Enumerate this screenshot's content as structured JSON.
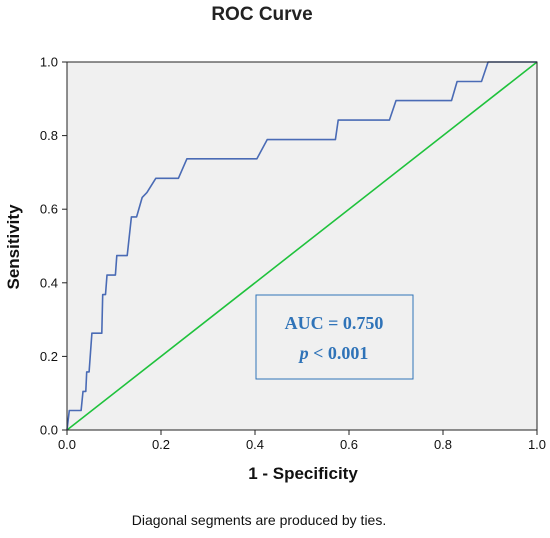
{
  "chart_data": {
    "type": "line",
    "title": "ROC Curve",
    "xlabel": "1 - Specificity",
    "ylabel": "Sensitivity",
    "xlim": [
      0.0,
      1.0
    ],
    "ylim": [
      0.0,
      1.0
    ],
    "x_ticks": [
      "0.0",
      "0.2",
      "0.4",
      "0.6",
      "0.8",
      "1.0"
    ],
    "y_ticks": [
      "0.0",
      "0.2",
      "0.4",
      "0.6",
      "0.8",
      "1.0"
    ],
    "grid": false,
    "series": [
      {
        "color": "#4a6bb5",
        "points": [
          [
            0.0,
            0.0
          ],
          [
            0.005,
            0.053
          ],
          [
            0.03,
            0.053
          ],
          [
            0.034,
            0.105
          ],
          [
            0.04,
            0.105
          ],
          [
            0.042,
            0.158
          ],
          [
            0.047,
            0.158
          ],
          [
            0.05,
            0.211
          ],
          [
            0.053,
            0.263
          ],
          [
            0.074,
            0.263
          ],
          [
            0.076,
            0.368
          ],
          [
            0.082,
            0.368
          ],
          [
            0.085,
            0.421
          ],
          [
            0.103,
            0.421
          ],
          [
            0.106,
            0.474
          ],
          [
            0.128,
            0.474
          ],
          [
            0.137,
            0.579
          ],
          [
            0.148,
            0.579
          ],
          [
            0.16,
            0.632
          ],
          [
            0.17,
            0.645
          ],
          [
            0.189,
            0.684
          ],
          [
            0.237,
            0.684
          ],
          [
            0.255,
            0.737
          ],
          [
            0.404,
            0.737
          ],
          [
            0.426,
            0.789
          ],
          [
            0.571,
            0.789
          ],
          [
            0.577,
            0.842
          ],
          [
            0.686,
            0.842
          ],
          [
            0.7,
            0.895
          ],
          [
            0.818,
            0.895
          ],
          [
            0.83,
            0.947
          ],
          [
            0.882,
            0.947
          ],
          [
            0.896,
            1.0
          ],
          [
            1.0,
            1.0
          ]
        ]
      },
      {
        "color": "#1fc23c",
        "points": [
          [
            0.0,
            0.0
          ],
          [
            1.0,
            1.0
          ]
        ]
      }
    ],
    "annotations": {
      "auc": "AUC = 0.750",
      "p_italic": "p",
      "p_rest": " < 0.001",
      "color": "#2f73b8"
    },
    "footnote": "Diagonal segments are produced by ties.",
    "plot_background": "#f0f0f0"
  }
}
